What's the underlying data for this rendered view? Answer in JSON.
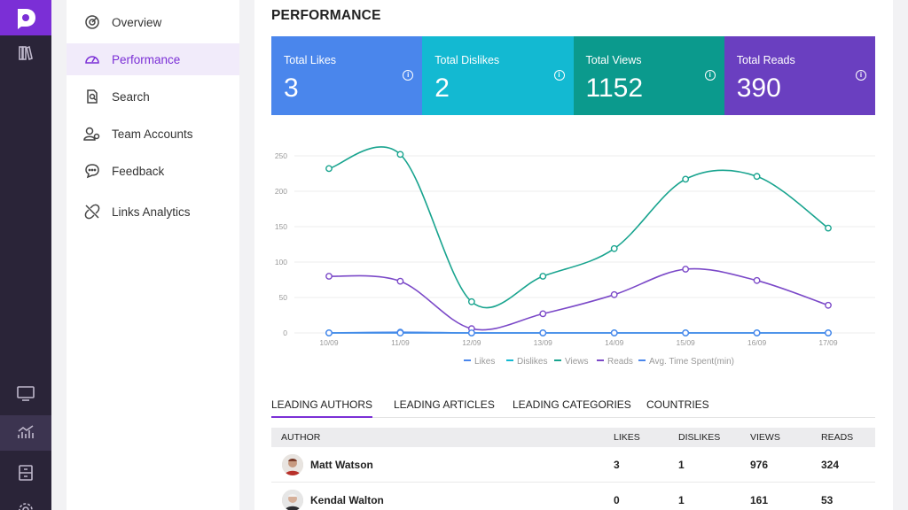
{
  "rail": {
    "logo_icon": "brand-logo-icon",
    "top_items": [
      {
        "icon": "library-icon"
      }
    ],
    "bottom_items": [
      {
        "icon": "monitor-icon"
      },
      {
        "icon": "analytics-chart-icon",
        "active": true
      },
      {
        "icon": "archive-icon"
      },
      {
        "icon": "settings-icon"
      }
    ]
  },
  "menu": {
    "items": [
      {
        "label": "Overview",
        "icon": "dashboard-gauge-icon"
      },
      {
        "label": "Performance",
        "icon": "speedometer-icon",
        "active": true
      },
      {
        "label": "Search",
        "icon": "search-document-icon"
      },
      {
        "label": "Team Accounts",
        "icon": "team-users-icon"
      },
      {
        "label": "Feedback",
        "icon": "chat-bubble-icon"
      },
      {
        "label": "Links Analytics",
        "icon": "broken-link-icon"
      }
    ]
  },
  "main": {
    "title": "PERFORMANCE",
    "cards": [
      {
        "label": "Total Likes",
        "value": "3",
        "color": "#4a86ec",
        "info_icon": "info-icon"
      },
      {
        "label": "Total Dislikes",
        "value": "2",
        "color": "#13b9d2",
        "info_icon": "info-icon"
      },
      {
        "label": "Total Views",
        "value": "1152",
        "color": "#0b9a8d",
        "info_icon": "info-icon"
      },
      {
        "label": "Total Reads",
        "value": "390",
        "color": "#6a3fc0",
        "info_icon": "info-icon"
      }
    ],
    "tabs": [
      "LEADING AUTHORS",
      "LEADING ARTICLES",
      "LEADING CATEGORIES",
      "COUNTRIES"
    ],
    "active_tab": 0,
    "table": {
      "headers": [
        "AUTHOR",
        "LIKES",
        "DISLIKES",
        "VIEWS",
        "READS"
      ],
      "rows": [
        {
          "name": "Matt Watson",
          "likes": "3",
          "dislikes": "1",
          "views": "976",
          "reads": "324"
        },
        {
          "name": "Kendal Walton",
          "likes": "0",
          "dislikes": "1",
          "views": "161",
          "reads": "53"
        }
      ]
    }
  },
  "chart_data": {
    "type": "line",
    "x": [
      "10/09",
      "11/09",
      "12/09",
      "13/09",
      "14/09",
      "15/09",
      "16/09",
      "17/09"
    ],
    "ylim": [
      0,
      250
    ],
    "yticks": [
      "0",
      "50",
      "100",
      "150",
      "200",
      "250"
    ],
    "grid": true,
    "legend_position": "bottom",
    "series": [
      {
        "name": "Likes",
        "color": "#4a86ec",
        "values": [
          0,
          1,
          0,
          0,
          0,
          0,
          0,
          0
        ]
      },
      {
        "name": "Dislikes",
        "color": "#13b9d2",
        "values": [
          0,
          0,
          0,
          0,
          0,
          0,
          0,
          0
        ]
      },
      {
        "name": "Views",
        "color": "#19a48f",
        "values": [
          232,
          252,
          44,
          80,
          119,
          217,
          221,
          148
        ]
      },
      {
        "name": "Reads",
        "color": "#7b49c8",
        "values": [
          80,
          73,
          6,
          27,
          54,
          90,
          74,
          39
        ]
      },
      {
        "name": "Avg. Time Spent(min)",
        "color": "#4a86ec",
        "values": [
          0,
          0,
          0,
          0,
          0,
          0,
          0,
          0
        ]
      }
    ]
  }
}
